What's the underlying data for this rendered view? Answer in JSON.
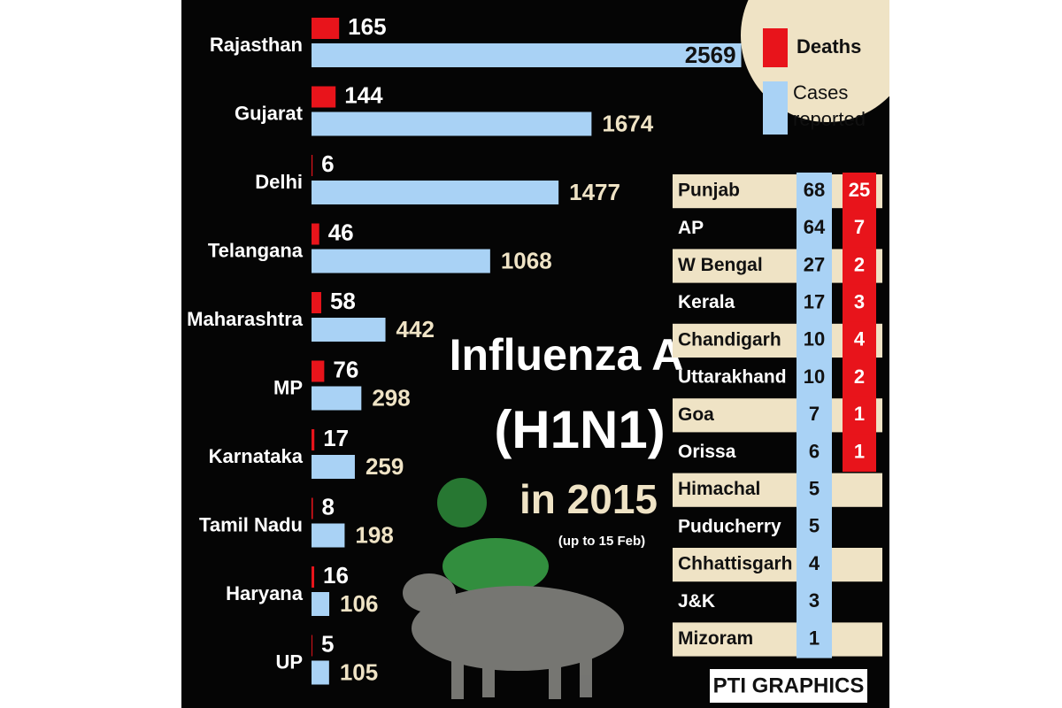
{
  "chart_data": {
    "type": "bar",
    "orientation": "horizontal",
    "title": "Influenza A",
    "subtitle": "(H1N1)",
    "year_label": "in 2015",
    "note": "(up to 15 Feb)",
    "categories": [
      "Rajasthan",
      "Gujarat",
      "Delhi",
      "Telangana",
      "Maharashtra",
      "MP",
      "Karnataka",
      "Tamil Nadu",
      "Haryana",
      "UP"
    ],
    "series": [
      {
        "name": "Deaths",
        "color": "#e8141b",
        "values": [
          165,
          144,
          6,
          46,
          58,
          76,
          17,
          8,
          16,
          5
        ]
      },
      {
        "name": "Cases reported",
        "color": "#a9d2f5",
        "values": [
          2569,
          1674,
          1477,
          1068,
          442,
          298,
          259,
          198,
          106,
          105
        ]
      }
    ]
  },
  "table": {
    "rows": [
      [
        "Punjab",
        68,
        25
      ],
      [
        "AP",
        64,
        7
      ],
      [
        "W Bengal",
        27,
        2
      ],
      [
        "Kerala",
        17,
        3
      ],
      [
        "Chandigarh",
        10,
        4
      ],
      [
        "Uttarakhand",
        10,
        2
      ],
      [
        "Goa",
        7,
        1
      ],
      [
        "Orissa",
        6,
        1
      ],
      [
        "Himachal",
        5,
        null
      ],
      [
        "Puducherry",
        5,
        null
      ],
      [
        "Chhattisgarh",
        4,
        null
      ],
      [
        "J&K",
        3,
        null
      ],
      [
        "Mizoram",
        1,
        null
      ]
    ]
  },
  "credit": "PTI GRAPHICS"
}
